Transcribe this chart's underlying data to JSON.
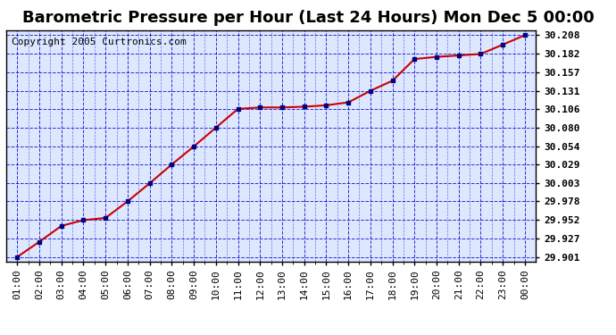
{
  "title": "Barometric Pressure per Hour (Last 24 Hours) Mon Dec 5 00:00",
  "copyright": "Copyright 2005 Curtronics.com",
  "x_labels": [
    "01:00",
    "02:00",
    "03:00",
    "04:00",
    "05:00",
    "06:00",
    "07:00",
    "08:00",
    "09:00",
    "10:00",
    "11:00",
    "12:00",
    "13:00",
    "14:00",
    "15:00",
    "16:00",
    "17:00",
    "18:00",
    "19:00",
    "20:00",
    "21:00",
    "22:00",
    "23:00",
    "00:00"
  ],
  "y_values": [
    29.901,
    29.922,
    29.944,
    29.952,
    29.955,
    29.978,
    30.003,
    30.029,
    30.054,
    30.08,
    30.106,
    30.108,
    30.108,
    30.109,
    30.111,
    30.115,
    30.131,
    30.145,
    30.175,
    30.178,
    30.18,
    30.182,
    30.195,
    30.208
  ],
  "y_ticks": [
    29.901,
    29.927,
    29.952,
    29.978,
    30.003,
    30.029,
    30.054,
    30.08,
    30.106,
    30.131,
    30.157,
    30.182,
    30.208
  ],
  "y_min": 29.895,
  "y_max": 30.215,
  "line_color": "#cc0000",
  "marker_color": "#000080",
  "bg_plot_color": "#dde8ff",
  "bg_fig_color": "#ffffff",
  "grid_color": "#0000cc",
  "title_fontsize": 13,
  "copyright_fontsize": 8,
  "tick_fontsize": 8,
  "title_color": "#000000",
  "axis_label_color": "#000000"
}
